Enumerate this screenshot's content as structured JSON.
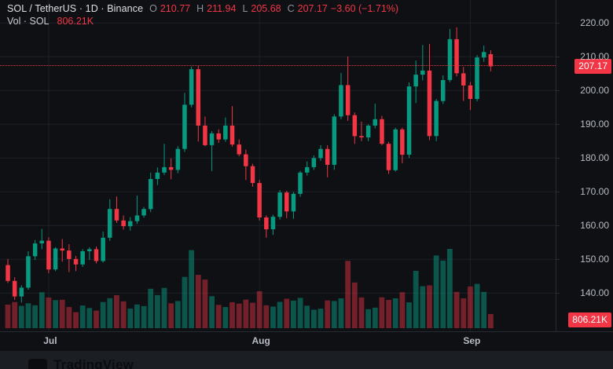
{
  "legend": {
    "symbol_full": "SOL / TetherUS · 1D · Binance",
    "o_label": "O",
    "o_value": "210.77",
    "h_label": "H",
    "h_value": "211.94",
    "l_label": "L",
    "l_value": "205.68",
    "c_label": "C",
    "c_value": "207.17",
    "change_value": "−3.60 (−1.71%)",
    "vol_label": "Vol · SOL",
    "vol_value": "806.21K"
  },
  "axes": {
    "price_badge": "207.17",
    "volume_badge": "806.21K"
  },
  "footer": {
    "brand": "TradingView"
  },
  "colors": {
    "up": "#089981",
    "down": "#f23645",
    "vol_up": "rgba(8,153,129,0.5)",
    "vol_down": "rgba(242,54,69,0.45)",
    "grid": "#1d2128",
    "axis_text": "#b8bcc4",
    "background": "#0e1014",
    "frame": "#272b33",
    "accent_red": "#f23645"
  },
  "chart_data": {
    "type": "candlestick",
    "title": "SOL / TetherUS · 1D · Binance",
    "subtitle": "Vol · SOL",
    "legend_position": "top-left",
    "grid": true,
    "price_axis": {
      "ticks": [
        220,
        210,
        200,
        190,
        180,
        170,
        160,
        150,
        140
      ],
      "ylim": [
        133,
        223
      ],
      "side": "right"
    },
    "time_axis": {
      "ticks": [
        {
          "label": "Jul",
          "index": 6
        },
        {
          "label": "Aug",
          "index": 37
        },
        {
          "label": "Sep",
          "index": 68
        }
      ]
    },
    "last": {
      "open": 210.77,
      "high": 211.94,
      "low": 205.68,
      "close": 207.17,
      "change": -3.6,
      "change_pct": -1.71,
      "volume_k": 806.21
    },
    "price_line_value": 207.17,
    "volume_unit": "K",
    "candles_format": [
      "open",
      "high",
      "low",
      "close",
      "volume_k"
    ],
    "candles": [
      [
        148.3,
        150.1,
        143.0,
        143.6,
        1350
      ],
      [
        143.6,
        144.7,
        138.0,
        139.0,
        1500
      ],
      [
        139.0,
        142.3,
        137.2,
        141.6,
        1280
      ],
      [
        141.6,
        152.4,
        141.0,
        150.9,
        1430
      ],
      [
        150.9,
        155.7,
        149.8,
        154.7,
        1310
      ],
      [
        154.7,
        159.0,
        153.0,
        155.5,
        2060
      ],
      [
        155.5,
        156.5,
        145.9,
        147.0,
        1760
      ],
      [
        147.0,
        153.6,
        146.5,
        153.2,
        1610
      ],
      [
        153.2,
        156.0,
        149.3,
        152.6,
        1630
      ],
      [
        152.6,
        154.5,
        146.2,
        150.1,
        1210
      ],
      [
        150.1,
        151.0,
        146.5,
        148.5,
        920
      ],
      [
        148.5,
        153.0,
        147.8,
        152.4,
        1300
      ],
      [
        152.4,
        153.6,
        149.8,
        153.0,
        1160
      ],
      [
        153.0,
        153.8,
        148.8,
        149.5,
        1010
      ],
      [
        149.5,
        158.2,
        149.0,
        156.4,
        1500
      ],
      [
        156.4,
        167.8,
        155.5,
        164.9,
        1720
      ],
      [
        164.9,
        168.6,
        160.8,
        161.5,
        1890
      ],
      [
        161.5,
        163.0,
        158.8,
        159.8,
        1540
      ],
      [
        159.8,
        162.5,
        158.5,
        161.3,
        1120
      ],
      [
        161.3,
        168.9,
        160.5,
        163.0,
        1360
      ],
      [
        163.0,
        165.5,
        162.3,
        164.9,
        1270
      ],
      [
        164.9,
        175.7,
        164.0,
        173.8,
        2260
      ],
      [
        173.8,
        177.2,
        172.0,
        175.7,
        1900
      ],
      [
        175.7,
        184.2,
        175.0,
        177.3,
        2310
      ],
      [
        177.3,
        179.9,
        173.7,
        176.5,
        1430
      ],
      [
        176.5,
        183.5,
        175.5,
        182.7,
        1560
      ],
      [
        182.7,
        199.3,
        181.8,
        195.8,
        2940
      ],
      [
        195.8,
        207.1,
        195.0,
        206.3,
        4480
      ],
      [
        206.3,
        207.3,
        184.9,
        189.6,
        3060
      ],
      [
        189.6,
        192.3,
        183.5,
        183.8,
        2790
      ],
      [
        183.8,
        188.0,
        176.1,
        187.3,
        1840
      ],
      [
        187.3,
        188.5,
        184.5,
        185.5,
        1340
      ],
      [
        185.5,
        192.0,
        184.8,
        189.6,
        1210
      ],
      [
        189.6,
        195.4,
        183.4,
        184.0,
        1490
      ],
      [
        184.0,
        185.5,
        180.5,
        181.1,
        1410
      ],
      [
        181.1,
        182.5,
        173.5,
        177.6,
        1640
      ],
      [
        177.6,
        178.3,
        171.5,
        172.6,
        1460
      ],
      [
        172.6,
        173.5,
        161.5,
        162.4,
        2120
      ],
      [
        162.4,
        163.0,
        156.4,
        158.9,
        1310
      ],
      [
        158.9,
        163.2,
        157.2,
        162.6,
        1240
      ],
      [
        162.6,
        170.5,
        161.8,
        169.8,
        1510
      ],
      [
        169.8,
        170.3,
        162.2,
        164.2,
        1690
      ],
      [
        164.2,
        170.0,
        162.0,
        169.4,
        1580
      ],
      [
        169.4,
        176.2,
        168.5,
        175.7,
        1740
      ],
      [
        175.7,
        179.0,
        174.8,
        177.3,
        1290
      ],
      [
        177.3,
        180.8,
        176.5,
        180.0,
        1060
      ],
      [
        180.0,
        183.8,
        179.2,
        182.7,
        1120
      ],
      [
        182.7,
        183.8,
        174.3,
        178.0,
        1590
      ],
      [
        178.0,
        193.0,
        176.5,
        192.3,
        1560
      ],
      [
        192.3,
        205.2,
        191.5,
        201.6,
        1710
      ],
      [
        201.6,
        210.1,
        191.0,
        192.7,
        3860
      ],
      [
        192.7,
        193.5,
        184.2,
        186.5,
        2620
      ],
      [
        186.5,
        190.8,
        185.0,
        186.1,
        1760
      ],
      [
        186.1,
        190.0,
        185.0,
        189.6,
        1090
      ],
      [
        189.6,
        196.1,
        188.8,
        191.5,
        1180
      ],
      [
        191.5,
        192.5,
        183.8,
        184.2,
        1770
      ],
      [
        184.2,
        184.8,
        175.3,
        176.4,
        1620
      ],
      [
        176.4,
        189.0,
        176.0,
        188.5,
        1710
      ],
      [
        188.5,
        189.0,
        178.4,
        181.0,
        2060
      ],
      [
        181.0,
        202.4,
        180.0,
        201.2,
        1480
      ],
      [
        201.2,
        208.9,
        196.3,
        204.7,
        3290
      ],
      [
        204.7,
        213.5,
        203.0,
        205.9,
        2410
      ],
      [
        205.9,
        213.8,
        185.3,
        186.5,
        2460
      ],
      [
        186.5,
        197.5,
        185.0,
        196.9,
        4170
      ],
      [
        196.9,
        204.5,
        196.0,
        203.1,
        3880
      ],
      [
        203.1,
        218.3,
        202.5,
        215.2,
        4550
      ],
      [
        215.2,
        218.7,
        204.2,
        205.1,
        2080
      ],
      [
        205.1,
        207.0,
        196.9,
        201.5,
        1710
      ],
      [
        201.5,
        202.5,
        194.2,
        197.5,
        2390
      ],
      [
        197.5,
        210.5,
        196.8,
        209.8,
        2540
      ],
      [
        209.8,
        213.3,
        208.5,
        211.4,
        2080
      ],
      [
        210.77,
        211.94,
        205.68,
        207.17,
        806.21
      ]
    ]
  }
}
